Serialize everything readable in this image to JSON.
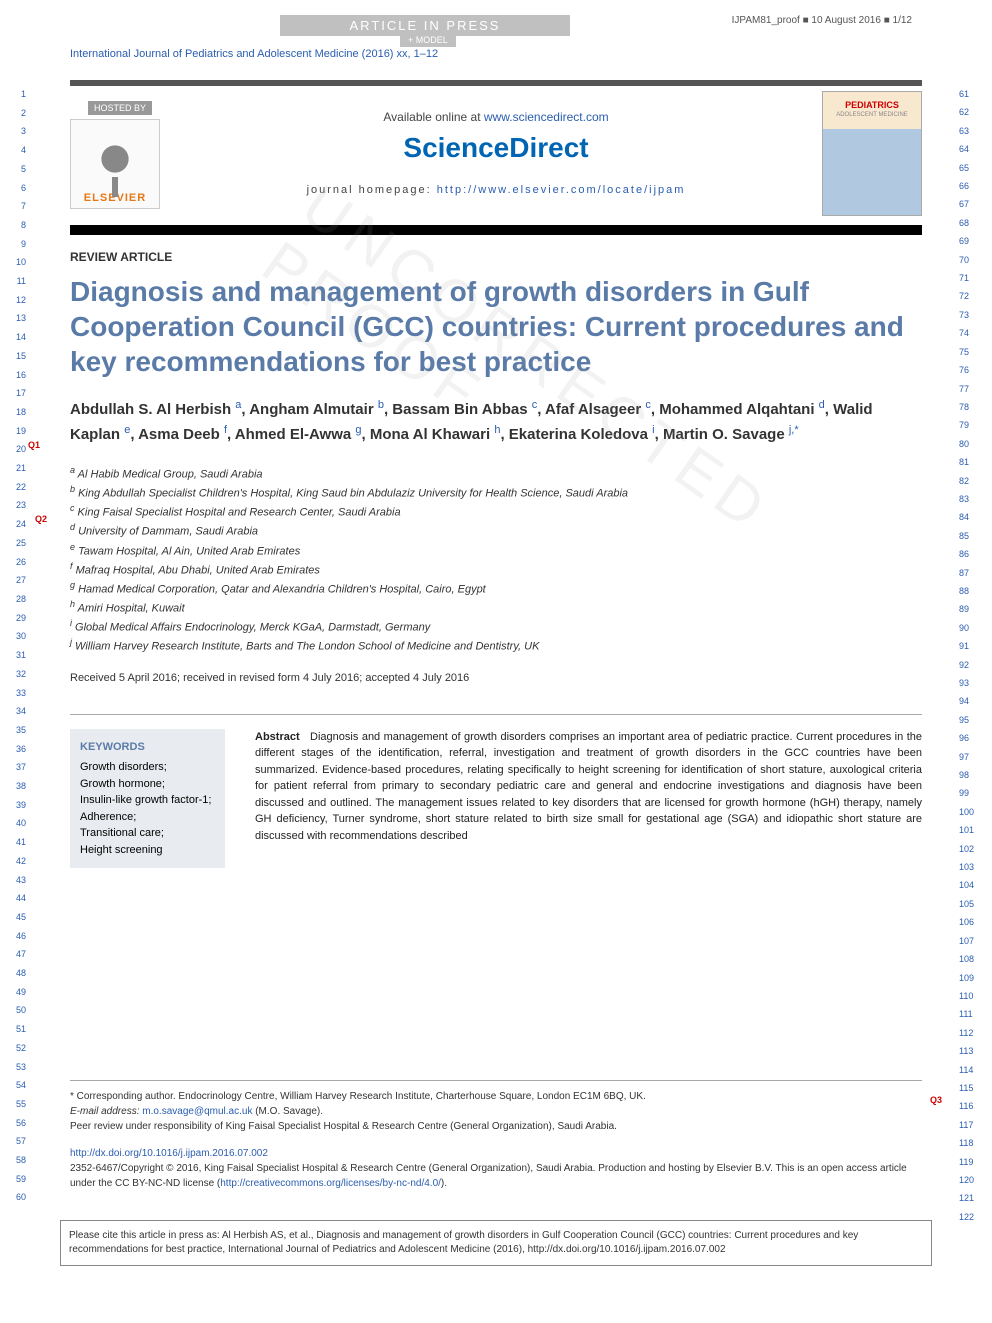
{
  "header": {
    "banner": "ARTICLE IN PRESS",
    "proof_ref": "IJPAM81_proof ■ 10 August 2016 ■ 1/12",
    "model": "+ MODEL",
    "journal_ref": "International Journal of Pediatrics and Adolescent Medicine (2016) xx, 1–12"
  },
  "masthead": {
    "hosted_by": "HOSTED BY",
    "publisher": "ELSEVIER",
    "available": "Available online at ",
    "available_url": "www.sciencedirect.com",
    "brand": "ScienceDirect",
    "homepage_label": "journal homepage: ",
    "homepage_url": "http://www.elsevier.com/locate/ijpam",
    "cover_title": "PEDIATRICS",
    "cover_sub": "ADOLESCENT MEDICINE"
  },
  "article": {
    "type": "REVIEW ARTICLE",
    "title": "Diagnosis and management of growth disorders in Gulf Cooperation Council (GCC) countries: Current procedures and key recommendations for best practice",
    "authors_html": "Abdullah S. Al Herbish <sup>a</sup>, Angham Almutair <sup>b</sup>, Bassam Bin Abbas <sup>c</sup>, Afaf Alsageer <sup>c</sup>, Mohammed Alqahtani <sup>d</sup>, Walid Kaplan <sup>e</sup>, Asma Deeb <sup>f</sup>, Ahmed El-Awwa <sup>g</sup>, Mona Al Khawari <sup>h</sup>, Ekaterina Koledova <sup>i</sup>, Martin O. Savage <sup>j,*</sup>",
    "affiliations": [
      "<sup>a</sup> Al Habib Medical Group, Saudi Arabia",
      "<sup>b</sup> King Abdullah Specialist Children's Hospital, King Saud bin Abdulaziz University for Health Science, Saudi Arabia",
      "<sup>c</sup> King Faisal Specialist Hospital and Research Center, Saudi Arabia",
      "<sup>d</sup> University of Dammam, Saudi Arabia",
      "<sup>e</sup> Tawam Hospital, Al Ain, United Arab Emirates",
      "<sup>f</sup> Mafraq Hospital, Abu Dhabi, United Arab Emirates",
      "<sup>g</sup> Hamad Medical Corporation, Qatar and Alexandria Children's Hospital, Cairo, Egypt",
      "<sup>h</sup> Amiri Hospital, Kuwait",
      "<sup>i</sup> Global Medical Affairs Endocrinology, Merck KGaA, Darmstadt, Germany",
      "<sup>j</sup> William Harvey Research Institute, Barts and The London School of Medicine and Dentistry, UK"
    ],
    "received": "Received 5 April 2016; received in revised form 4 July 2016; accepted 4 July 2016",
    "keywords_head": "KEYWORDS",
    "keywords": "Growth disorders;<br>Growth hormone;<br>Insulin-like growth factor-1;<br>Adherence;<br>Transitional care;<br>Height screening",
    "abstract_head": "Abstract",
    "abstract": "Diagnosis and management of growth disorders comprises an important area of pediatric practice. Current procedures in the different stages of the identification, referral, investigation and treatment of growth disorders in the GCC countries have been summarized. Evidence-based procedures, relating specifically to height screening for identification of short stature, auxological criteria for patient referral from primary to secondary pediatric care and general and endocrine investigations and diagnosis have been discussed and outlined. The management issues related to key disorders that are licensed for growth hormone (hGH) therapy, namely GH deficiency, Turner syndrome, short stature related to birth size small for gestational age (SGA) and idiopathic short stature are discussed with recommendations described"
  },
  "footer": {
    "corresponding": "* Corresponding author. Endocrinology Centre, William Harvey Research Institute, Charterhouse Square, London EC1M 6BQ, UK.",
    "email_label": "E-mail address: ",
    "email": "m.o.savage@qmul.ac.uk",
    "email_name": " (M.O. Savage).",
    "peer": "Peer review under responsibility of King Faisal Specialist Hospital & Research Centre (General Organization), Saudi Arabia.",
    "doi": "http://dx.doi.org/10.1016/j.ijpam.2016.07.002",
    "copyright": "2352-6467/Copyright © 2016, King Faisal Specialist Hospital & Research Centre (General Organization), Saudi Arabia. Production and hosting by Elsevier B.V. This is an open access article under the CC BY-NC-ND license (",
    "cc_url": "http://creativecommons.org/licenses/by-nc-nd/4.0/",
    "cc_close": ")."
  },
  "citebox": "Please cite this article in press as: Al Herbish AS, et al., Diagnosis and management of growth disorders in Gulf Cooperation Council (GCC) countries: Current procedures and key recommendations for best practice, International Journal of Pediatrics and Adolescent Medicine (2016), http://dx.doi.org/10.1016/j.ijpam.2016.07.002",
  "queries": {
    "q1": "Q1",
    "q2": "Q2",
    "q3": "Q3"
  },
  "watermark": "UNCORRECTED PROOF",
  "line_numbers": {
    "left_start": 1,
    "left_end": 60,
    "right_start": 61,
    "right_end": 122
  },
  "colors": {
    "link": "#2a5db0",
    "title": "#5a7ba8",
    "banner_bg": "#c0c0c0",
    "sd_blue": "#0066b3",
    "elsevier_orange": "#e67817",
    "kw_bg": "#e8ecf0",
    "query_red": "#c00"
  },
  "typography": {
    "title_fontsize": 28,
    "authors_fontsize": 15,
    "body_fontsize": 11,
    "footer_fontsize": 10,
    "linenum_fontsize": 9
  }
}
